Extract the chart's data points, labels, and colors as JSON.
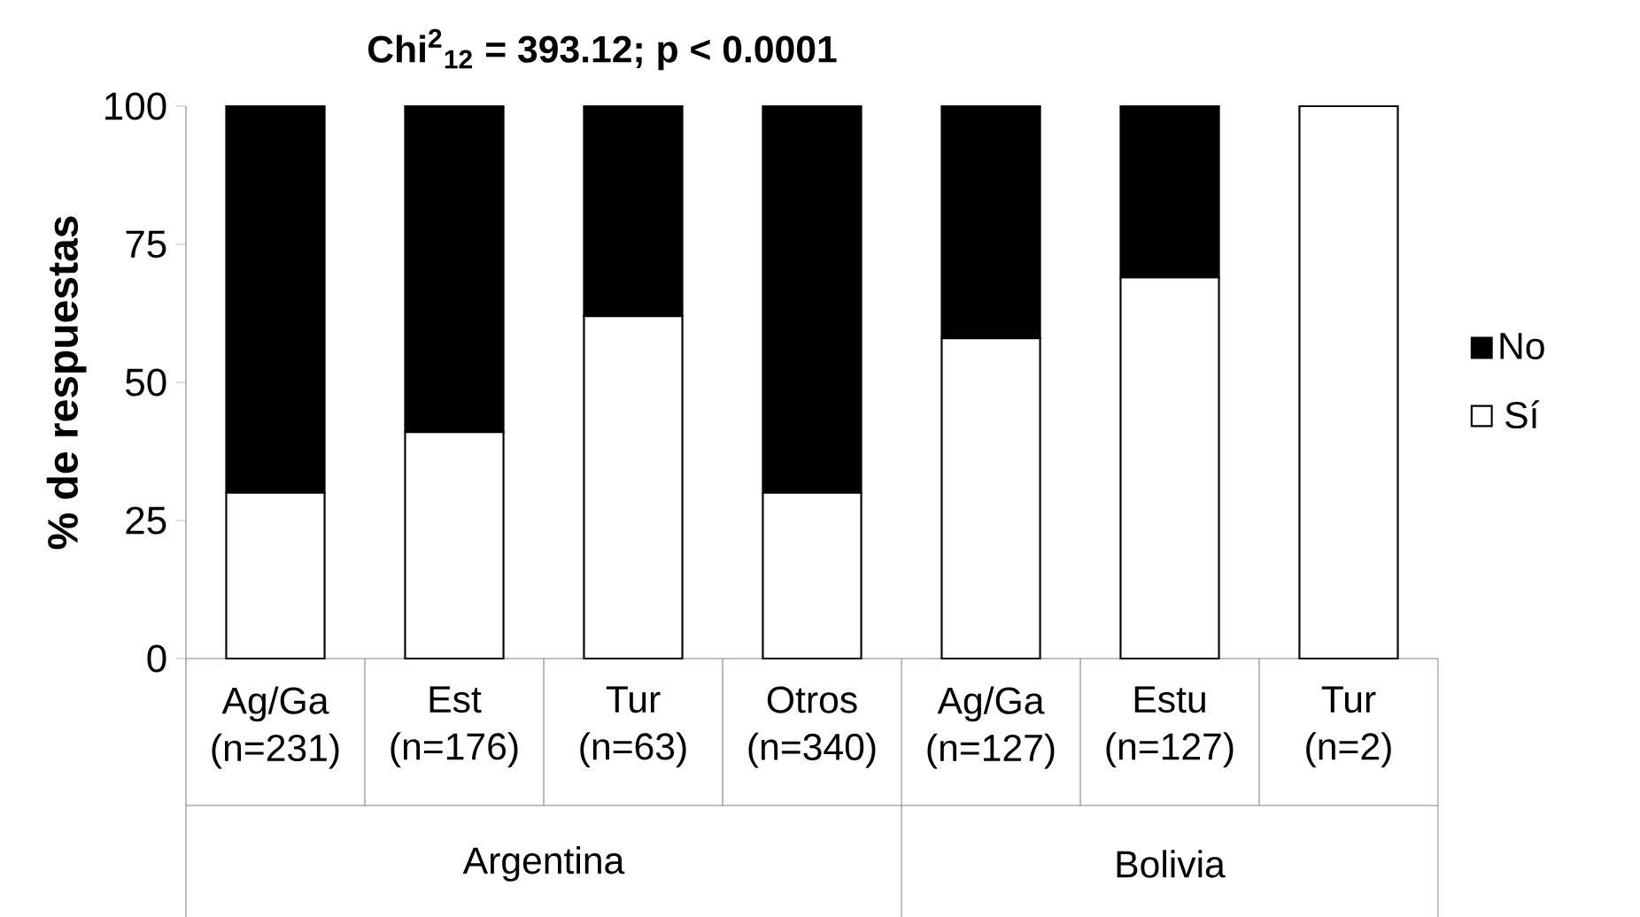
{
  "chart_data": {
    "type": "bar",
    "stacked": true,
    "title": "Chi$^{2}$$_{12}$ = 393.12; p < 0.0001",
    "ylabel": "% de respuestas",
    "categories": [
      "Ag/Ga (n=231)",
      "Est (n=176)",
      "Tur (n=63)",
      "Otros (n=340)",
      "Ag/Ga (n=127)",
      "Estu (n=127)",
      "Tur (n=2)"
    ],
    "series": [
      {
        "name": "Sí",
        "color": "#ffffff",
        "values": [
          30,
          41,
          62,
          30,
          58,
          69,
          100
        ]
      },
      {
        "name": "No",
        "color": "#000000",
        "values": [
          70,
          59,
          38,
          70,
          42,
          31,
          0
        ]
      }
    ],
    "ylim": [
      0,
      100
    ],
    "yticks": [
      0,
      25,
      50,
      75,
      100
    ],
    "legend": "right",
    "grid": false,
    "annotations": [
      "Argentina",
      "Bolivia"
    ]
  }
}
